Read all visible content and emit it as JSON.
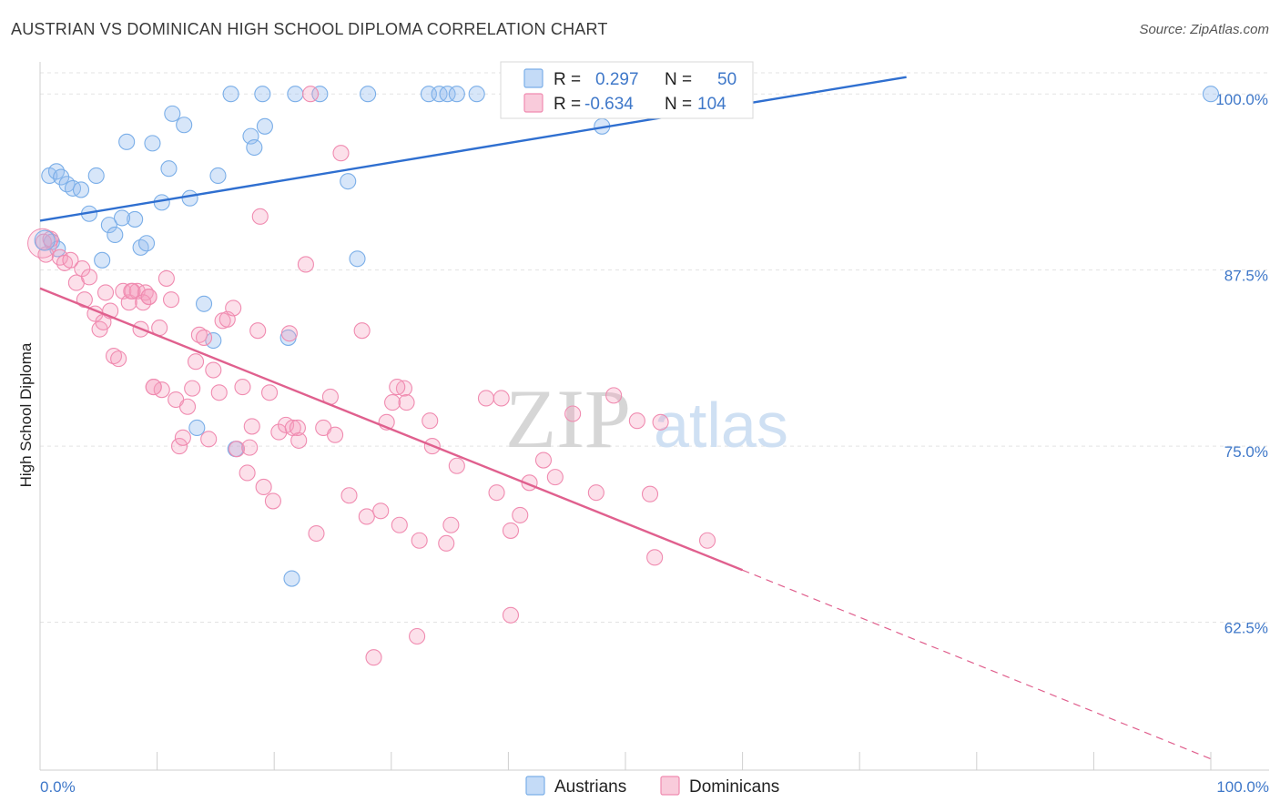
{
  "title": "AUSTRIAN VS DOMINICAN HIGH SCHOOL DIPLOMA CORRELATION CHART",
  "source": "Source: ZipAtlas.com",
  "watermark": {
    "part1": "ZIP",
    "part2": "atlas"
  },
  "legend_box": {
    "rows": [
      {
        "r_label": "R =",
        "r_value": "0.297",
        "n_label": "N =",
        "n_value": "50",
        "color": "#7aaee8"
      },
      {
        "r_label": "R =",
        "r_value": "-0.634",
        "n_label": "N =",
        "n_value": "104",
        "color": "#f08bb0"
      }
    ]
  },
  "bottom_legend": [
    {
      "label": "Austrians",
      "color": "#7aaee8"
    },
    {
      "label": "Dominicans",
      "color": "#f08bb0"
    }
  ],
  "chart_data": {
    "type": "scatter",
    "title": "AUSTRIAN VS DOMINICAN HIGH SCHOOL DIPLOMA CORRELATION CHART",
    "xlabel": "",
    "ylabel": "High School Diploma",
    "xlim": [
      0,
      100
    ],
    "ylim": [
      52,
      101.5
    ],
    "x_tick_labels": [
      "0.0%",
      "100.0%"
    ],
    "y_ticks": [
      62.5,
      75.0,
      87.5,
      100.0
    ],
    "y_tick_labels": [
      "62.5%",
      "75.0%",
      "87.5%",
      "100.0%"
    ],
    "grid": true,
    "legend_position": "top-center",
    "series": [
      {
        "name": "Austrians",
        "color": "#7aaee8",
        "line_color": "#2f6fd0",
        "trend": {
          "x": [
            0,
            74
          ],
          "y": [
            91.0,
            101.2
          ]
        },
        "points": [
          [
            0.8,
            94.2
          ],
          [
            1.4,
            94.5
          ],
          [
            1.8,
            94.1
          ],
          [
            2.3,
            93.6
          ],
          [
            2.8,
            93.3
          ],
          [
            3.5,
            93.2
          ],
          [
            4.8,
            94.2
          ],
          [
            4.2,
            91.5
          ],
          [
            1.0,
            89.5
          ],
          [
            5.3,
            88.2
          ],
          [
            5.9,
            90.7
          ],
          [
            6.4,
            90.0
          ],
          [
            7.4,
            96.6
          ],
          [
            8.1,
            91.1
          ],
          [
            8.6,
            89.1
          ],
          [
            9.1,
            89.4
          ],
          [
            9.6,
            96.5
          ],
          [
            10.4,
            92.3
          ],
          [
            11.0,
            94.7
          ],
          [
            11.3,
            98.6
          ],
          [
            12.3,
            97.8
          ],
          [
            12.8,
            92.6
          ],
          [
            13.4,
            76.3
          ],
          [
            14.0,
            85.1
          ],
          [
            14.8,
            82.5
          ],
          [
            15.2,
            94.2
          ],
          [
            16.7,
            74.8
          ],
          [
            16.3,
            100.0
          ],
          [
            18.0,
            97.0
          ],
          [
            18.3,
            96.2
          ],
          [
            19.0,
            100.0
          ],
          [
            19.2,
            97.7
          ],
          [
            21.2,
            82.7
          ],
          [
            21.5,
            65.6
          ],
          [
            21.8,
            100.0
          ],
          [
            23.9,
            100.0
          ],
          [
            26.3,
            93.8
          ],
          [
            27.1,
            88.3
          ],
          [
            28.0,
            100.0
          ],
          [
            33.2,
            100.0
          ],
          [
            34.1,
            100.0
          ],
          [
            34.8,
            100.0
          ],
          [
            35.6,
            100.0
          ],
          [
            37.3,
            100.0
          ],
          [
            41.8,
            100.0
          ],
          [
            45.0,
            100.0
          ],
          [
            48.0,
            97.7
          ],
          [
            7.0,
            91.2
          ],
          [
            1.5,
            89.0
          ],
          [
            100.0,
            100.0
          ]
        ]
      },
      {
        "name": "Dominicans",
        "color": "#f08bb0",
        "line_color": "#e0608e",
        "trend": {
          "x": [
            0,
            60
          ],
          "y": [
            86.2,
            66.2
          ]
        },
        "trend_dashed": {
          "x": [
            60,
            100
          ],
          "y": [
            66.2,
            52.8
          ]
        },
        "points": [
          [
            0.3,
            89.5
          ],
          [
            0.5,
            88.6
          ],
          [
            0.9,
            89.7
          ],
          [
            1.7,
            88.4
          ],
          [
            2.1,
            88.0
          ],
          [
            2.6,
            88.2
          ],
          [
            3.1,
            86.6
          ],
          [
            3.6,
            87.6
          ],
          [
            3.8,
            85.4
          ],
          [
            4.2,
            87.0
          ],
          [
            4.7,
            84.4
          ],
          [
            5.1,
            83.3
          ],
          [
            5.4,
            83.8
          ],
          [
            5.6,
            85.9
          ],
          [
            6.0,
            84.6
          ],
          [
            6.3,
            81.4
          ],
          [
            6.7,
            81.2
          ],
          [
            7.1,
            86.0
          ],
          [
            7.6,
            85.2
          ],
          [
            7.9,
            86.0
          ],
          [
            8.3,
            86.0
          ],
          [
            8.6,
            83.3
          ],
          [
            9.0,
            85.9
          ],
          [
            9.3,
            85.6
          ],
          [
            9.7,
            79.2
          ],
          [
            10.2,
            83.4
          ],
          [
            10.4,
            79.0
          ],
          [
            10.8,
            86.9
          ],
          [
            11.2,
            85.4
          ],
          [
            11.6,
            78.3
          ],
          [
            11.9,
            75.0
          ],
          [
            12.2,
            75.6
          ],
          [
            12.6,
            77.8
          ],
          [
            13.0,
            79.1
          ],
          [
            13.3,
            81.0
          ],
          [
            13.6,
            82.9
          ],
          [
            14.0,
            82.7
          ],
          [
            14.4,
            75.5
          ],
          [
            14.8,
            80.4
          ],
          [
            15.3,
            78.8
          ],
          [
            15.6,
            83.9
          ],
          [
            16.0,
            84.0
          ],
          [
            16.5,
            84.8
          ],
          [
            16.8,
            74.8
          ],
          [
            17.3,
            79.2
          ],
          [
            17.7,
            73.1
          ],
          [
            18.1,
            76.4
          ],
          [
            18.6,
            83.2
          ],
          [
            19.1,
            72.1
          ],
          [
            19.6,
            78.8
          ],
          [
            19.9,
            71.1
          ],
          [
            20.4,
            76.0
          ],
          [
            21.0,
            76.5
          ],
          [
            21.3,
            83.0
          ],
          [
            21.6,
            76.3
          ],
          [
            22.1,
            75.4
          ],
          [
            22.7,
            87.9
          ],
          [
            23.1,
            100.0
          ],
          [
            23.6,
            68.8
          ],
          [
            24.2,
            76.3
          ],
          [
            24.8,
            78.5
          ],
          [
            25.2,
            75.8
          ],
          [
            25.7,
            95.8
          ],
          [
            26.4,
            71.5
          ],
          [
            27.5,
            83.2
          ],
          [
            27.9,
            70.0
          ],
          [
            28.5,
            60.0
          ],
          [
            29.1,
            70.4
          ],
          [
            29.6,
            76.7
          ],
          [
            30.1,
            78.1
          ],
          [
            30.7,
            69.4
          ],
          [
            31.1,
            79.1
          ],
          [
            31.3,
            78.1
          ],
          [
            32.2,
            61.5
          ],
          [
            32.4,
            68.3
          ],
          [
            33.3,
            76.8
          ],
          [
            33.5,
            75.0
          ],
          [
            34.7,
            68.1
          ],
          [
            35.1,
            69.4
          ],
          [
            35.6,
            73.6
          ],
          [
            38.1,
            78.4
          ],
          [
            39.0,
            71.7
          ],
          [
            39.4,
            78.4
          ],
          [
            40.2,
            69.0
          ],
          [
            40.2,
            63.0
          ],
          [
            41.0,
            70.1
          ],
          [
            41.8,
            72.4
          ],
          [
            43.0,
            74.0
          ],
          [
            44.0,
            72.8
          ],
          [
            45.5,
            77.3
          ],
          [
            47.5,
            71.7
          ],
          [
            49.0,
            78.6
          ],
          [
            51.0,
            76.8
          ],
          [
            52.1,
            71.6
          ],
          [
            52.5,
            67.1
          ],
          [
            53.0,
            76.7
          ],
          [
            57.0,
            68.3
          ],
          [
            7.8,
            86.0
          ],
          [
            8.8,
            85.2
          ],
          [
            18.8,
            91.3
          ],
          [
            9.3,
            85.6
          ],
          [
            30.5,
            79.2
          ],
          [
            22.0,
            76.3
          ],
          [
            9.7,
            79.2
          ],
          [
            17.9,
            74.9
          ]
        ]
      }
    ]
  }
}
